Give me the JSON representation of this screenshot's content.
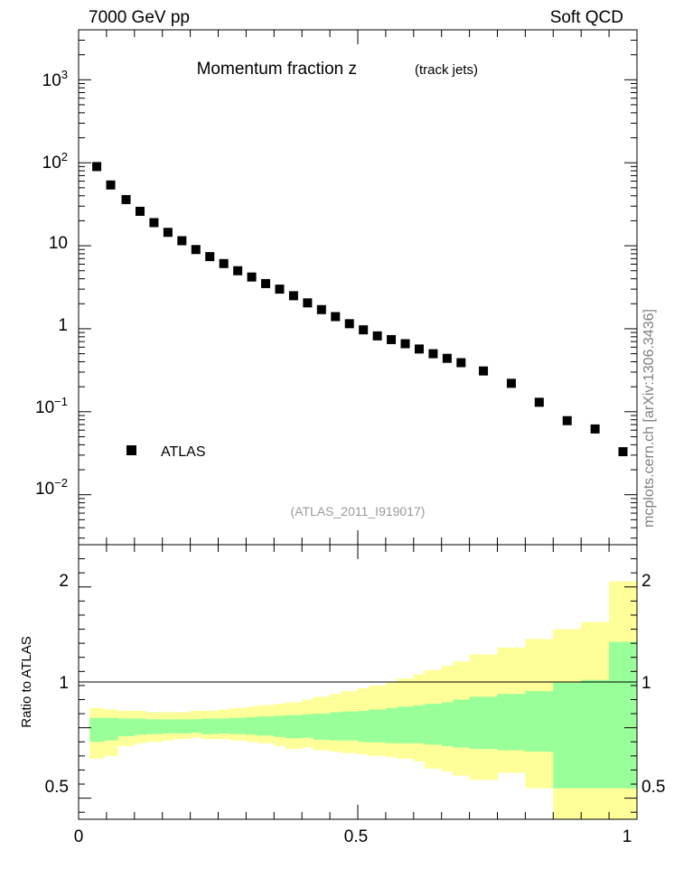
{
  "header": {
    "left": "7000 GeV pp",
    "right": "Soft QCD"
  },
  "side_label": "mcplots.cern.ch [arXiv:1306.3436]",
  "colors": {
    "band_inner": "#99ff99",
    "band_outer": "#ffff99",
    "marker": "#000000"
  },
  "chart_data": [
    {
      "type": "scatter",
      "title": "Momentum fraction z",
      "subtitle": "(track jets)",
      "analysis_label": "(ATLAS_2011_I919017)",
      "legend": {
        "position": "bottom-left",
        "entries": [
          "ATLAS"
        ]
      },
      "y_scale": "log",
      "xlim": [
        0,
        1
      ],
      "ylim": [
        0.0025,
        4000
      ],
      "y_tick_labels": [
        "10^-2",
        "10^-1",
        "1",
        "10",
        "10^2",
        "10^3"
      ],
      "series": [
        {
          "name": "ATLAS",
          "x": [
            0.0325,
            0.0575,
            0.085,
            0.11,
            0.135,
            0.16,
            0.185,
            0.21,
            0.235,
            0.26,
            0.285,
            0.31,
            0.335,
            0.36,
            0.385,
            0.41,
            0.435,
            0.46,
            0.485,
            0.51,
            0.535,
            0.56,
            0.585,
            0.61,
            0.635,
            0.66,
            0.685,
            0.725,
            0.775,
            0.825,
            0.875,
            0.925,
            0.975
          ],
          "y": [
            90,
            54,
            36,
            26,
            19,
            14.5,
            11.5,
            9,
            7.4,
            6.1,
            5.0,
            4.2,
            3.5,
            3.0,
            2.5,
            2.05,
            1.7,
            1.4,
            1.15,
            0.97,
            0.82,
            0.74,
            0.66,
            0.57,
            0.5,
            0.44,
            0.39,
            0.31,
            0.22,
            0.13,
            0.078,
            0.062,
            0.033
          ]
        }
      ]
    },
    {
      "type": "area",
      "ylabel": "Ratio to ATLAS",
      "xlim": [
        0,
        1
      ],
      "ylim": [
        0.35,
        2.3
      ],
      "x_tick_labels": [
        "0",
        "0.5",
        "1"
      ],
      "y_tick_labels": [
        "0.5",
        "1",
        "2"
      ],
      "reference_line": 1,
      "bin_edges": [
        0.02,
        0.045,
        0.07,
        0.1,
        0.12,
        0.15,
        0.17,
        0.2,
        0.22,
        0.25,
        0.27,
        0.3,
        0.32,
        0.35,
        0.37,
        0.4,
        0.42,
        0.45,
        0.47,
        0.5,
        0.52,
        0.55,
        0.57,
        0.6,
        0.62,
        0.65,
        0.67,
        0.7,
        0.75,
        0.8,
        0.85,
        0.9,
        0.95,
        1.0
      ],
      "inner_band": {
        "low": [
          0.9,
          0.91,
          0.94,
          0.95,
          0.955,
          0.96,
          0.96,
          0.965,
          0.955,
          0.96,
          0.955,
          0.95,
          0.945,
          0.935,
          0.925,
          0.93,
          0.915,
          0.91,
          0.91,
          0.9,
          0.895,
          0.89,
          0.89,
          0.89,
          0.88,
          0.87,
          0.86,
          0.85,
          0.84,
          0.83,
          0.57,
          0.57,
          0.57
        ],
        "high": [
          1.07,
          1.07,
          1.065,
          1.065,
          1.06,
          1.06,
          1.06,
          1.06,
          1.065,
          1.065,
          1.07,
          1.075,
          1.08,
          1.085,
          1.09,
          1.095,
          1.1,
          1.11,
          1.115,
          1.12,
          1.13,
          1.14,
          1.15,
          1.16,
          1.17,
          1.18,
          1.2,
          1.22,
          1.24,
          1.26,
          1.32,
          1.34,
          1.61
        ]
      },
      "outer_band": {
        "low": [
          0.78,
          0.8,
          0.87,
          0.89,
          0.9,
          0.91,
          0.92,
          0.93,
          0.92,
          0.92,
          0.91,
          0.9,
          0.89,
          0.87,
          0.85,
          0.86,
          0.84,
          0.83,
          0.82,
          0.81,
          0.8,
          0.79,
          0.78,
          0.76,
          0.71,
          0.69,
          0.66,
          0.63,
          0.68,
          0.57,
          0.35,
          0.35,
          0.35
        ],
        "high": [
          1.14,
          1.13,
          1.12,
          1.12,
          1.11,
          1.11,
          1.11,
          1.12,
          1.12,
          1.13,
          1.14,
          1.15,
          1.16,
          1.17,
          1.18,
          1.2,
          1.22,
          1.24,
          1.26,
          1.28,
          1.3,
          1.32,
          1.35,
          1.38,
          1.41,
          1.44,
          1.47,
          1.52,
          1.57,
          1.63,
          1.7,
          1.75,
          2.04
        ]
      }
    }
  ]
}
